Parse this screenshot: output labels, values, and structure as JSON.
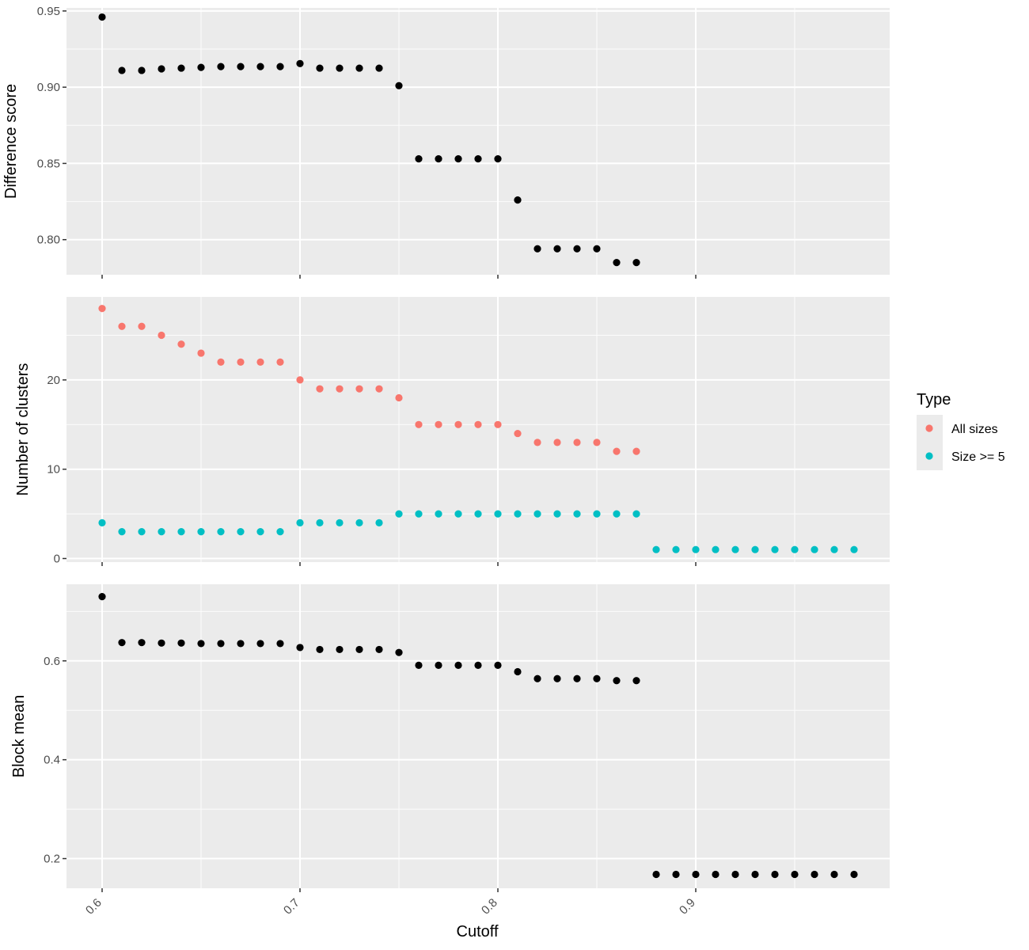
{
  "chart_data": {
    "type": "scatter",
    "xlabel": "Cutoff",
    "x_ticks": [
      "0.6",
      "0.7",
      "0.8",
      "0.9"
    ],
    "xlim": [
      0.582,
      0.998
    ],
    "legend": {
      "title": "Type",
      "placement": "right",
      "entries": [
        {
          "label": "All sizes",
          "color": "#F8766D"
        },
        {
          "label": "Size >= 5",
          "color": "#00BFC4"
        }
      ]
    },
    "panels": [
      {
        "ylabel": "Difference score",
        "ylim": [
          0.777,
          0.952
        ],
        "y_ticks": [
          0.8,
          0.85,
          0.9,
          0.95
        ],
        "y_tick_labels": [
          "0.80",
          "0.85",
          "0.90",
          "0.95"
        ],
        "series": [
          {
            "color": "#000000",
            "x": [
              0.6,
              0.61,
              0.62,
              0.63,
              0.64,
              0.65,
              0.66,
              0.67,
              0.68,
              0.69,
              0.7,
              0.71,
              0.72,
              0.73,
              0.74,
              0.75,
              0.76,
              0.77,
              0.78,
              0.79,
              0.8,
              0.81,
              0.82,
              0.83,
              0.84,
              0.85,
              0.86,
              0.87
            ],
            "y": [
              0.946,
              0.911,
              0.911,
              0.912,
              0.9125,
              0.913,
              0.9135,
              0.9135,
              0.9135,
              0.9135,
              0.9155,
              0.9125,
              0.9125,
              0.9125,
              0.9125,
              0.901,
              0.853,
              0.853,
              0.853,
              0.853,
              0.853,
              0.826,
              0.794,
              0.794,
              0.794,
              0.794,
              0.785,
              0.785
            ]
          }
        ]
      },
      {
        "ylabel": "Number of clusters",
        "ylim": [
          -0.4,
          29.3
        ],
        "y_ticks": [
          0,
          10,
          20
        ],
        "y_tick_labels": [
          "0",
          "10",
          "20"
        ],
        "series": [
          {
            "name": "All sizes",
            "color": "#F8766D",
            "x": [
              0.6,
              0.61,
              0.62,
              0.63,
              0.64,
              0.65,
              0.66,
              0.67,
              0.68,
              0.69,
              0.7,
              0.71,
              0.72,
              0.73,
              0.74,
              0.75,
              0.76,
              0.77,
              0.78,
              0.79,
              0.8,
              0.81,
              0.82,
              0.83,
              0.84,
              0.85,
              0.86,
              0.87
            ],
            "y": [
              28,
              26,
              26,
              25,
              24,
              23,
              22,
              22,
              22,
              22,
              20,
              19,
              19,
              19,
              19,
              18,
              15,
              15,
              15,
              15,
              15,
              14,
              13,
              13,
              13,
              13,
              12,
              12
            ]
          },
          {
            "name": "Size >= 5",
            "color": "#00BFC4",
            "x": [
              0.6,
              0.61,
              0.62,
              0.63,
              0.64,
              0.65,
              0.66,
              0.67,
              0.68,
              0.69,
              0.7,
              0.71,
              0.72,
              0.73,
              0.74,
              0.75,
              0.76,
              0.77,
              0.78,
              0.79,
              0.8,
              0.81,
              0.82,
              0.83,
              0.84,
              0.85,
              0.86,
              0.87,
              0.88,
              0.89,
              0.9,
              0.91,
              0.92,
              0.93,
              0.94,
              0.95,
              0.96,
              0.97,
              0.98
            ],
            "y": [
              4,
              3,
              3,
              3,
              3,
              3,
              3,
              3,
              3,
              3,
              4,
              4,
              4,
              4,
              4,
              5,
              5,
              5,
              5,
              5,
              5,
              5,
              5,
              5,
              5,
              5,
              5,
              5,
              1,
              1,
              1,
              1,
              1,
              1,
              1,
              1,
              1,
              1,
              1
            ]
          }
        ]
      },
      {
        "ylabel": "Block mean",
        "ylim": [
          0.14,
          0.755
        ],
        "y_ticks": [
          0.2,
          0.4,
          0.6
        ],
        "y_tick_labels": [
          "0.2",
          "0.4",
          "0.6"
        ],
        "series": [
          {
            "color": "#000000",
            "x": [
              0.6,
              0.61,
              0.62,
              0.63,
              0.64,
              0.65,
              0.66,
              0.67,
              0.68,
              0.69,
              0.7,
              0.71,
              0.72,
              0.73,
              0.74,
              0.75,
              0.76,
              0.77,
              0.78,
              0.79,
              0.8,
              0.81,
              0.82,
              0.83,
              0.84,
              0.85,
              0.86,
              0.87,
              0.88,
              0.89,
              0.9,
              0.91,
              0.92,
              0.93,
              0.94,
              0.95,
              0.96,
              0.97,
              0.98
            ],
            "y": [
              0.73,
              0.637,
              0.637,
              0.636,
              0.636,
              0.635,
              0.635,
              0.635,
              0.635,
              0.635,
              0.627,
              0.623,
              0.623,
              0.623,
              0.623,
              0.617,
              0.591,
              0.591,
              0.591,
              0.591,
              0.591,
              0.578,
              0.564,
              0.564,
              0.564,
              0.564,
              0.56,
              0.56,
              0.168,
              0.168,
              0.168,
              0.168,
              0.168,
              0.168,
              0.168,
              0.168,
              0.168,
              0.168,
              0.168
            ]
          }
        ]
      }
    ]
  }
}
